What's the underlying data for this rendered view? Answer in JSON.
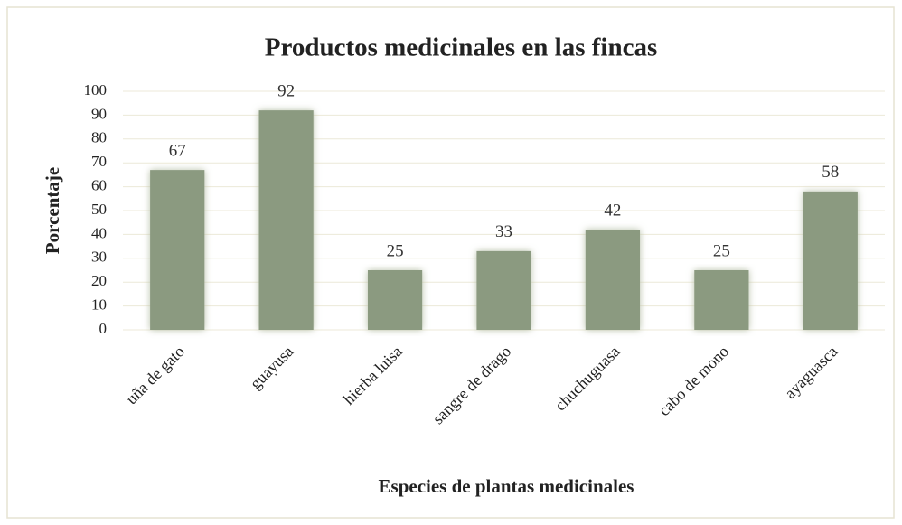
{
  "chart_data": {
    "type": "bar",
    "title": "Productos medicinales en las fincas",
    "x_label": "Especies de plantas medicinales",
    "y_label": "Porcentaje",
    "categories": [
      "uña de gato",
      "guayusa",
      "hierba luisa",
      "sangre de drago",
      "chuchuguasa",
      "cabo de mono",
      "ayaguasca"
    ],
    "values": [
      67,
      92,
      25,
      33,
      42,
      25,
      58
    ],
    "color": "#8b9a80",
    "ylim": [
      0,
      100
    ],
    "yticks": [
      0,
      10,
      20,
      30,
      40,
      50,
      60,
      70,
      80,
      90,
      100
    ],
    "grid": true
  }
}
